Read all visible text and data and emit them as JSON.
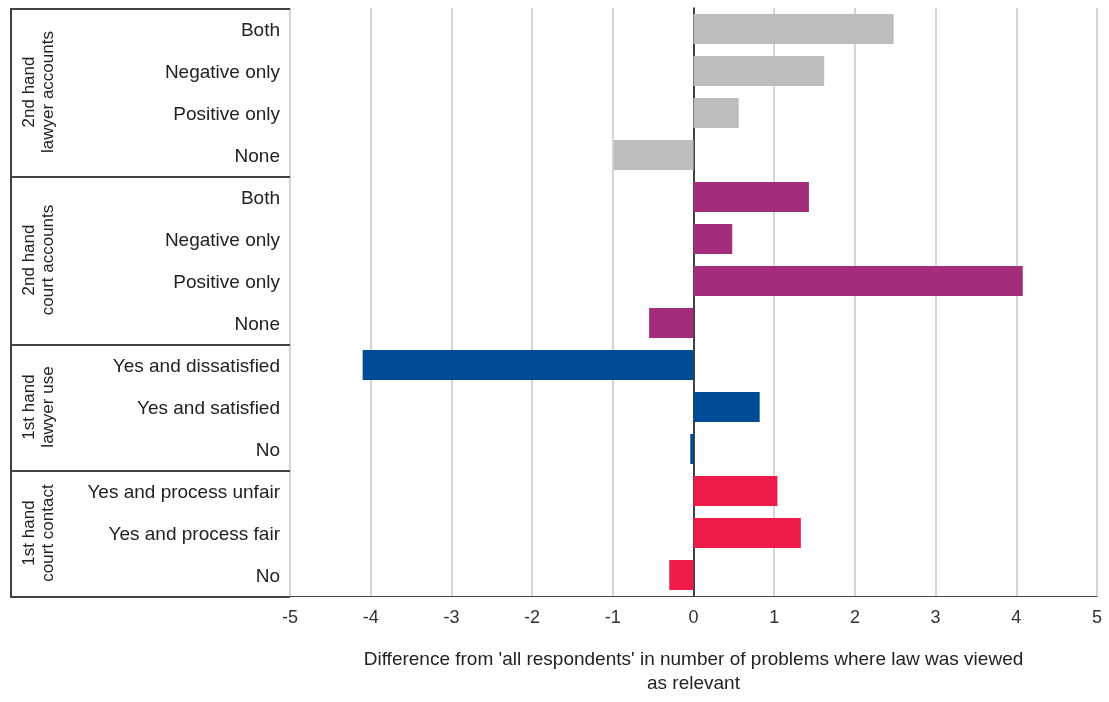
{
  "chart_data": {
    "type": "bar",
    "orientation": "horizontal",
    "xlabel": "Difference from 'all respondents' in number of problems where law was viewed as relevant",
    "categories": [
      "Both",
      "Negative only",
      "Positive only",
      "None",
      "Both",
      "Negative only",
      "Positive only",
      "None",
      "Yes and dissatisfied",
      "Yes and satisfied",
      "No",
      "Yes and process unfair",
      "Yes and process fair",
      "No"
    ],
    "series": [
      {
        "color": "#bdbdbf",
        "values": [
          2.48,
          1.62,
          0.56,
          -0.99,
          null,
          null,
          null,
          null,
          null,
          null,
          null,
          null,
          null,
          null
        ]
      },
      {
        "color": "#a32c7b",
        "values": [
          null,
          null,
          null,
          null,
          1.43,
          0.48,
          4.08,
          -0.55,
          null,
          null,
          null,
          null,
          null,
          null
        ]
      },
      {
        "color": "#004b96",
        "values": [
          null,
          null,
          null,
          null,
          null,
          null,
          null,
          null,
          -4.1,
          0.82,
          -0.04,
          null,
          null,
          null
        ]
      },
      {
        "color": "#ee1b4b",
        "values": [
          null,
          null,
          null,
          null,
          null,
          null,
          null,
          null,
          null,
          null,
          null,
          1.04,
          1.33,
          -0.3
        ]
      }
    ],
    "annotations": [
      "2nd hand lawyer accounts",
      "2nd hand court accounts",
      "1st hand lawyer use",
      "1st hand court contact"
    ],
    "xlim": [
      -5,
      5
    ],
    "xticks": [
      -5,
      -4,
      -3,
      -2,
      -1,
      0,
      1,
      2,
      3,
      4,
      5
    ],
    "grid": "x"
  }
}
